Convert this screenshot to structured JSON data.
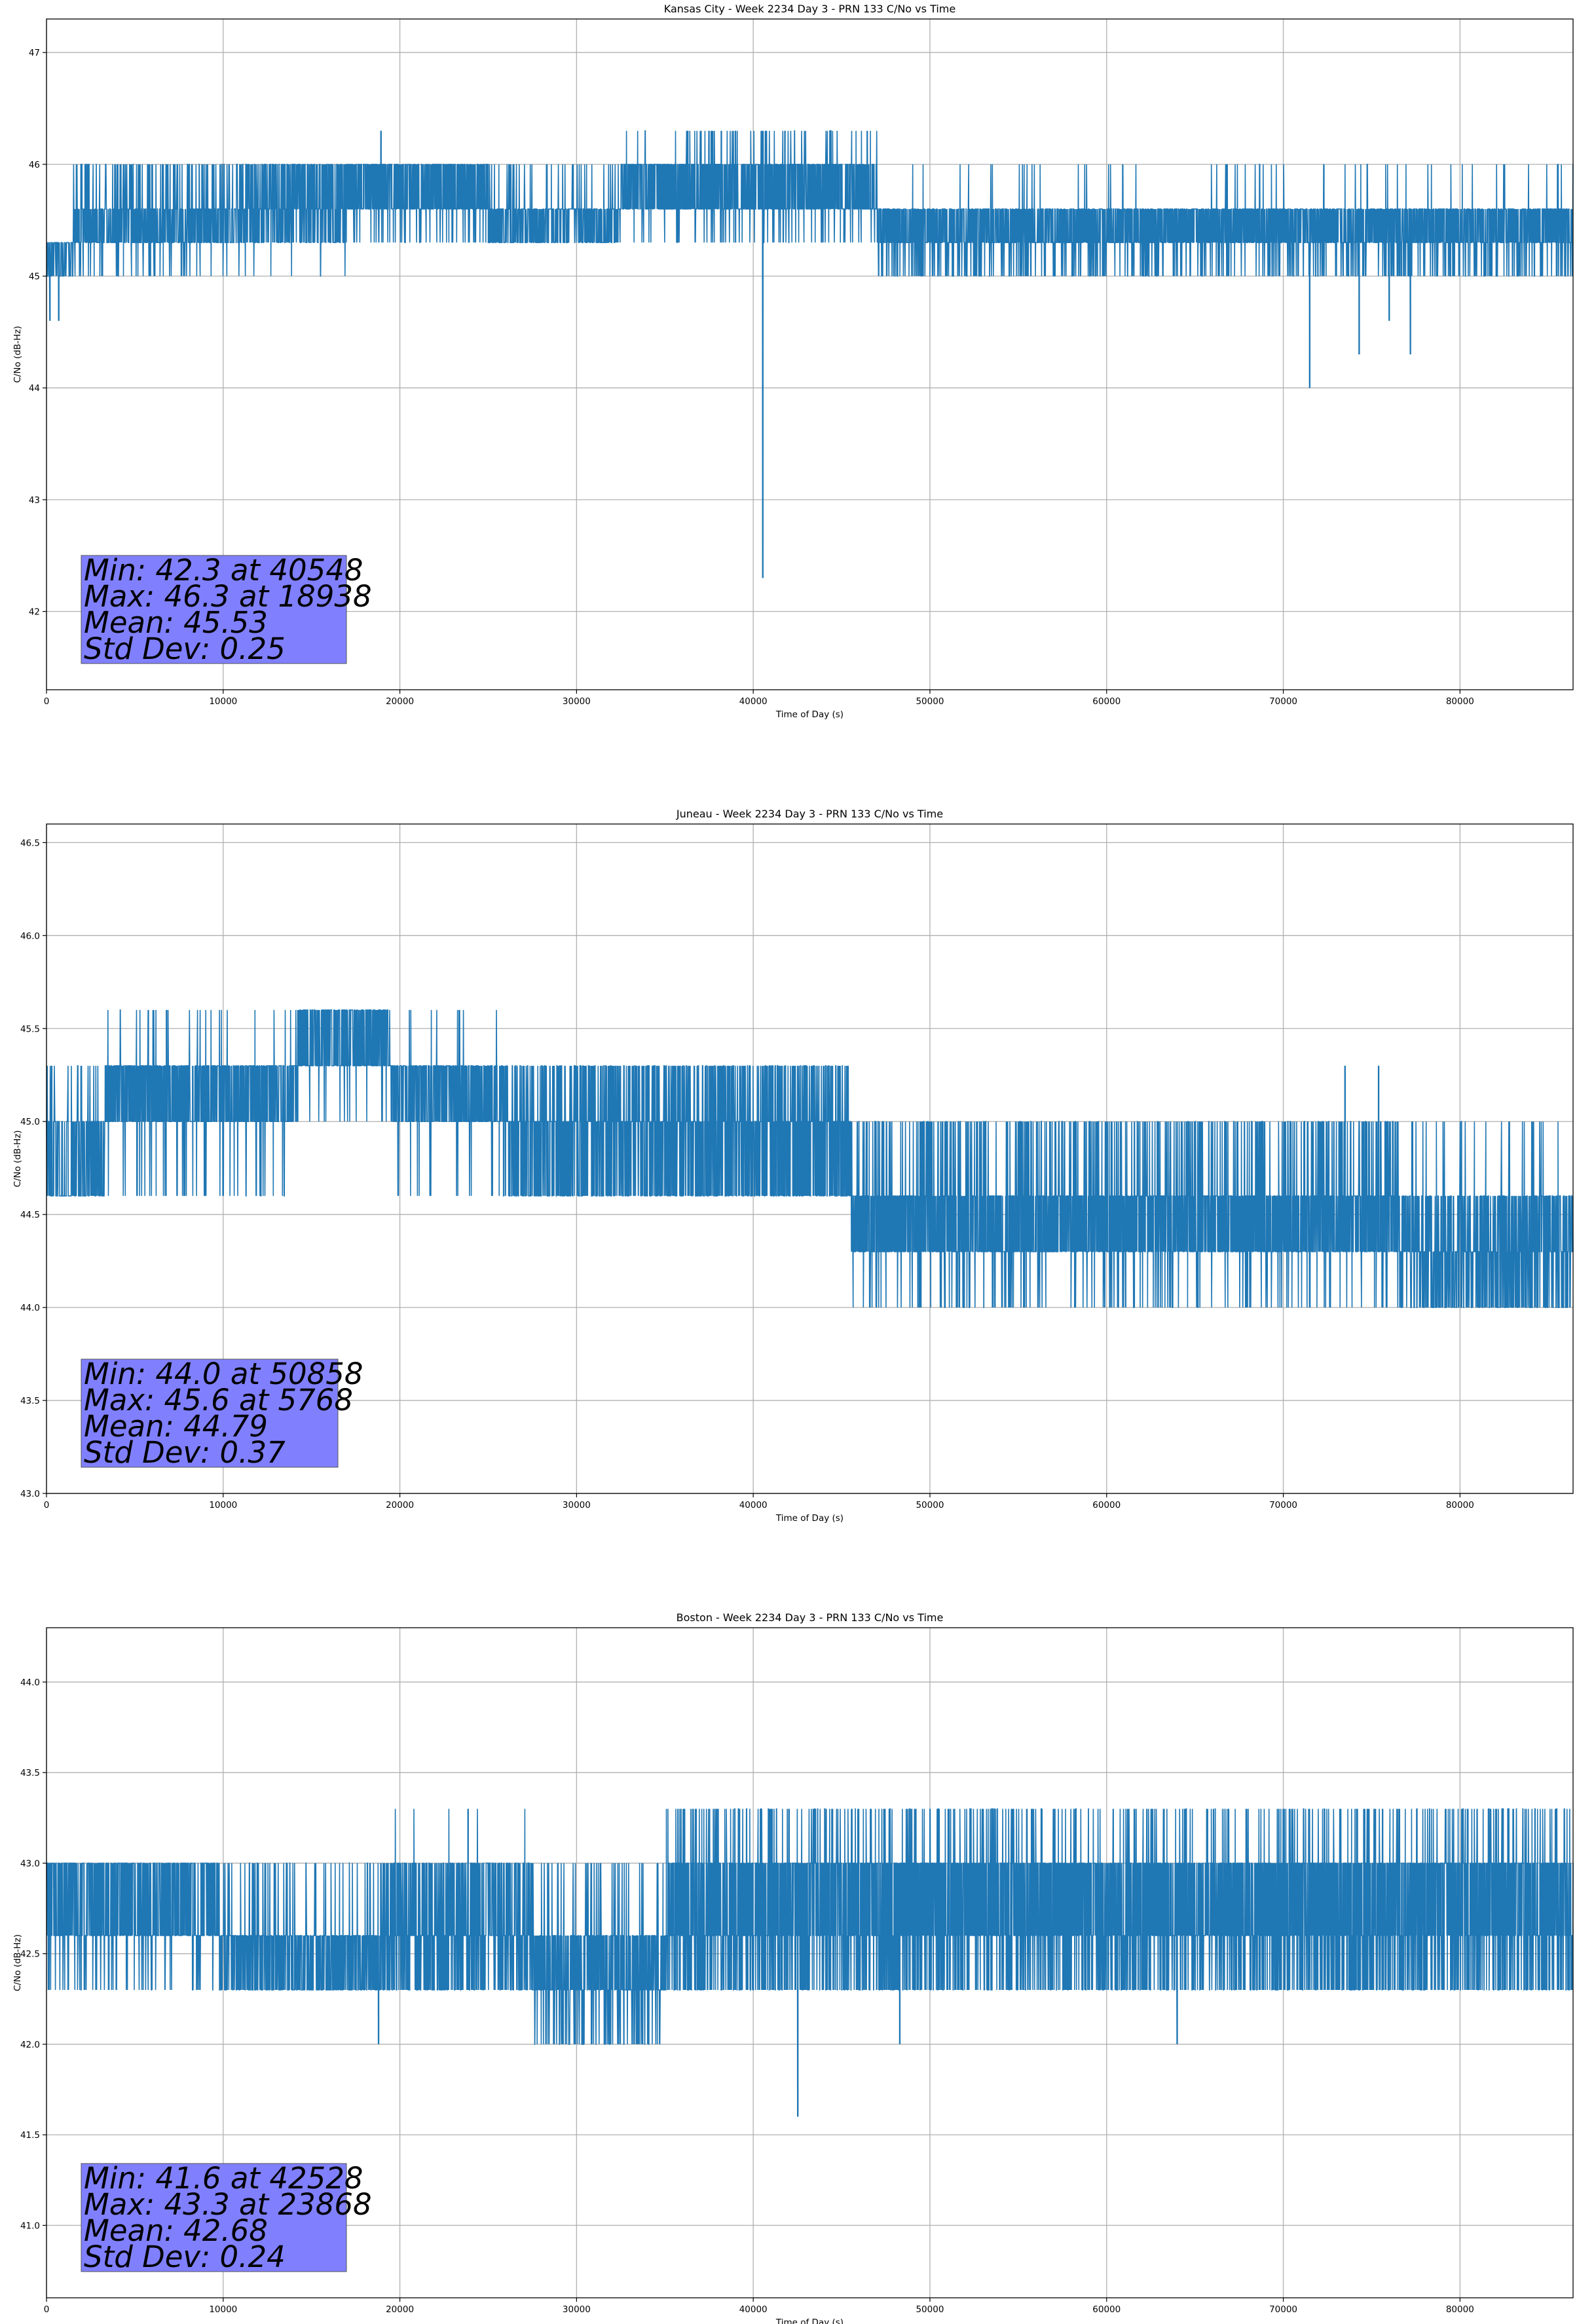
{
  "chart_data": [
    {
      "type": "line",
      "title": "Kansas City - Week 2234 Day 3 - PRN 133 C/No vs Time",
      "xlabel": "Time of Day (s)",
      "ylabel": "C/No (dB-Hz)",
      "xlim": [
        0,
        86400
      ],
      "ylim": [
        41.3,
        47.3
      ],
      "xticks": [
        0,
        10000,
        20000,
        30000,
        40000,
        50000,
        60000,
        70000,
        80000
      ],
      "yticks": [
        42,
        43,
        44,
        45,
        46,
        47
      ],
      "ytick_labels": [
        "42",
        "43",
        "44",
        "45",
        "46",
        "47"
      ],
      "grid": true,
      "color": "#1f77b4",
      "segments": [
        {
          "x0": 0,
          "x1": 1500,
          "lo": 45.0,
          "hi": 45.3,
          "density": 40
        },
        {
          "x0": 1500,
          "x1": 10000,
          "lo": 45.3,
          "hi": 45.6,
          "density": 60,
          "up": 46.0,
          "upRate": 0.15,
          "dn": 45.0,
          "dnRate": 0.05
        },
        {
          "x0": 10000,
          "x1": 17000,
          "lo": 45.3,
          "hi": 45.6,
          "density": 60,
          "up": 46.0,
          "upRate": 0.35,
          "dn": 45.0,
          "dnRate": 0.02
        },
        {
          "x0": 17000,
          "x1": 25000,
          "lo": 45.6,
          "hi": 46.0,
          "density": 70,
          "up": 46.0,
          "upRate": 0.0,
          "dn": 45.3,
          "dnRate": 0.08
        },
        {
          "x0": 25000,
          "x1": 32500,
          "lo": 45.3,
          "hi": 45.6,
          "density": 55,
          "up": 46.0,
          "upRate": 0.05,
          "dn": 45.3,
          "dnRate": 0.0
        },
        {
          "x0": 32500,
          "x1": 47000,
          "lo": 45.6,
          "hi": 46.0,
          "density": 70,
          "up": 46.3,
          "upRate": 0.05,
          "dn": 45.3,
          "dnRate": 0.05
        },
        {
          "x0": 47000,
          "x1": 86400,
          "lo": 45.3,
          "hi": 45.6,
          "density": 70,
          "up": 46.0,
          "upRate": 0.02,
          "dn": 45.0,
          "dnRate": 0.12
        }
      ],
      "spikes": [
        {
          "x": 40548,
          "y": 42.3
        },
        {
          "x": 18938,
          "y": 46.3
        },
        {
          "x": 200,
          "y": 44.6
        },
        {
          "x": 700,
          "y": 44.6
        },
        {
          "x": 71500,
          "y": 44.0
        },
        {
          "x": 74300,
          "y": 44.3
        },
        {
          "x": 76000,
          "y": 44.6
        },
        {
          "x": 77200,
          "y": 44.3
        },
        {
          "x": 36300,
          "y": 46.3
        },
        {
          "x": 37500,
          "y": 46.3
        },
        {
          "x": 38200,
          "y": 46.3
        },
        {
          "x": 39000,
          "y": 46.3
        },
        {
          "x": 40700,
          "y": 46.3
        },
        {
          "x": 41800,
          "y": 46.3
        },
        {
          "x": 66800,
          "y": 46.0
        },
        {
          "x": 72300,
          "y": 46.0
        }
      ],
      "stats": {
        "min": "Min: 42.3 at 40548",
        "max": "Max: 46.3 at 18938",
        "mean": "Mean: 45.53",
        "std": "Std Dev: 0.25"
      }
    },
    {
      "type": "line",
      "title": "Juneau - Week 2234 Day 3 - PRN 133 C/No vs Time",
      "xlabel": "Time of Day (s)",
      "ylabel": "C/No (dB-Hz)",
      "xlim": [
        0,
        86400
      ],
      "ylim": [
        43.0,
        46.6
      ],
      "xticks": [
        0,
        10000,
        20000,
        30000,
        40000,
        50000,
        60000,
        70000,
        80000
      ],
      "yticks": [
        43.0,
        43.5,
        44.0,
        44.5,
        45.0,
        45.5,
        46.0,
        46.5
      ],
      "ytick_labels": [
        "43.0",
        "43.5",
        "44.0",
        "44.5",
        "45.0",
        "45.5",
        "46.0",
        "46.5"
      ],
      "grid": true,
      "color": "#1f77b4",
      "segments": [
        {
          "x0": 0,
          "x1": 3300,
          "lo": 44.6,
          "hi": 45.0,
          "density": 45,
          "up": 45.3,
          "upRate": 0.05,
          "dn": 44.6,
          "dnRate": 0.0
        },
        {
          "x0": 3300,
          "x1": 14200,
          "lo": 45.0,
          "hi": 45.3,
          "density": 65,
          "up": 45.6,
          "upRate": 0.03,
          "dn": 44.6,
          "dnRate": 0.05
        },
        {
          "x0": 14200,
          "x1": 19500,
          "lo": 45.3,
          "hi": 45.6,
          "density": 60,
          "up": 45.6,
          "upRate": 0.0,
          "dn": 45.0,
          "dnRate": 0.05
        },
        {
          "x0": 19500,
          "x1": 25800,
          "lo": 45.0,
          "hi": 45.3,
          "density": 60,
          "up": 45.6,
          "upRate": 0.03,
          "dn": 44.6,
          "dnRate": 0.05
        },
        {
          "x0": 25800,
          "x1": 45500,
          "lo": 44.6,
          "hi": 45.0,
          "density": 70,
          "up": 45.3,
          "upRate": 0.22,
          "dn": 44.6,
          "dnRate": 0.0
        },
        {
          "x0": 45500,
          "x1": 76500,
          "lo": 44.3,
          "hi": 44.6,
          "density": 75,
          "up": 45.0,
          "upRate": 0.15,
          "dn": 44.0,
          "dnRate": 0.06
        },
        {
          "x0": 76500,
          "x1": 86400,
          "lo": 44.3,
          "hi": 44.6,
          "density": 60,
          "up": 45.0,
          "upRate": 0.04,
          "dn": 44.0,
          "dnRate": 0.3
        }
      ],
      "spikes": [
        {
          "x": 5768,
          "y": 45.6
        },
        {
          "x": 6800,
          "y": 45.6
        },
        {
          "x": 50858,
          "y": 44.0
        },
        {
          "x": 73500,
          "y": 45.3
        },
        {
          "x": 75400,
          "y": 45.3
        },
        {
          "x": 300,
          "y": 45.3
        }
      ],
      "stats": {
        "min": "Min: 44.0 at 50858",
        "max": "Max: 45.6 at 5768",
        "mean": "Mean: 44.79",
        "std": "Std Dev: 0.37"
      }
    },
    {
      "type": "line",
      "title": "Boston - Week 2234 Day 3 - PRN 133 C/No vs Time",
      "xlabel": "Time of Day (s)",
      "ylabel": "C/No (dB-Hz)",
      "xlim": [
        0,
        86400
      ],
      "ylim": [
        40.6,
        44.3
      ],
      "xticks": [
        0,
        10000,
        20000,
        30000,
        40000,
        50000,
        60000,
        70000,
        80000
      ],
      "yticks": [
        41.0,
        41.5,
        42.0,
        42.5,
        43.0,
        43.5,
        44.0
      ],
      "ytick_labels": [
        "41.0",
        "41.5",
        "42.0",
        "42.5",
        "43.0",
        "43.5",
        "44.0"
      ],
      "grid": true,
      "color": "#1f77b4",
      "segments": [
        {
          "x0": 0,
          "x1": 9800,
          "lo": 42.6,
          "hi": 43.0,
          "density": 65,
          "up": 43.3,
          "upRate": 0.0,
          "dn": 42.3,
          "dnRate": 0.07
        },
        {
          "x0": 9800,
          "x1": 19500,
          "lo": 42.3,
          "hi": 42.6,
          "density": 55,
          "up": 43.0,
          "upRate": 0.12,
          "dn": 42.0,
          "dnRate": 0.0
        },
        {
          "x0": 19500,
          "x1": 27500,
          "lo": 42.6,
          "hi": 43.0,
          "density": 60,
          "up": 43.3,
          "upRate": 0.02,
          "dn": 42.3,
          "dnRate": 0.3
        },
        {
          "x0": 27500,
          "x1": 35000,
          "lo": 42.3,
          "hi": 42.6,
          "density": 60,
          "up": 43.0,
          "upRate": 0.08,
          "dn": 42.0,
          "dnRate": 0.15
        },
        {
          "x0": 35000,
          "x1": 86400,
          "lo": 42.6,
          "hi": 43.0,
          "density": 80,
          "up": 43.3,
          "upRate": 0.08,
          "dn": 42.3,
          "dnRate": 0.2
        }
      ],
      "spikes": [
        {
          "x": 42528,
          "y": 41.6
        },
        {
          "x": 23868,
          "y": 43.3
        },
        {
          "x": 18800,
          "y": 42.0
        },
        {
          "x": 64000,
          "y": 42.0
        },
        {
          "x": 48300,
          "y": 42.0
        }
      ],
      "stats": {
        "min": "Min: 41.6 at 42528",
        "max": "Max: 43.3 at 23868",
        "mean": "Mean: 42.68",
        "std": "Std Dev: 0.24"
      }
    }
  ]
}
